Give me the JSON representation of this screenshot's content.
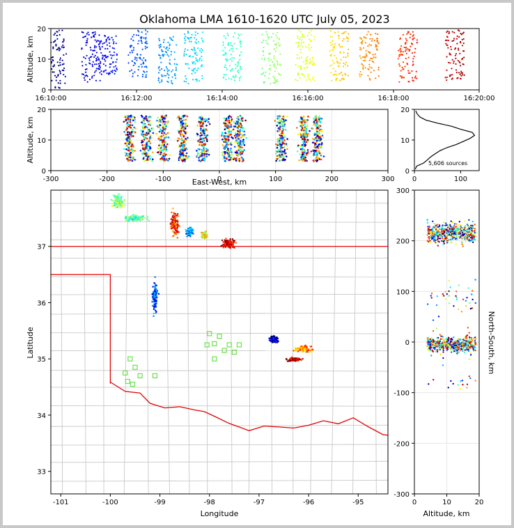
{
  "chart_data": [
    {
      "type": "scatter",
      "id": "time_height",
      "title": "Oklahoma LMA 1610-1620 UTC July 05, 2023",
      "xlabel": "",
      "ylabel": "Altitude, km",
      "xticks": [
        "16:10:00",
        "16:12:00",
        "16:14:00",
        "16:16:00",
        "16:18:00",
        "16:20:00"
      ],
      "xlim_minutes": [
        0,
        10
      ],
      "ylim": [
        0,
        20
      ],
      "yticks": [
        0,
        10,
        20
      ],
      "color_by": "time (blue → red)",
      "series": [
        {
          "x_minutes": 0.0,
          "ymin": 0.5,
          "ymax": 19.5
        },
        {
          "x_minutes": 0.8,
          "ymin": 2.5,
          "ymax": 19.0
        },
        {
          "x_minutes": 1.2,
          "ymin": 5.0,
          "ymax": 18.0
        },
        {
          "x_minutes": 1.9,
          "ymin": 4.0,
          "ymax": 19.5
        },
        {
          "x_minutes": 2.6,
          "ymin": 2.0,
          "ymax": 18.0
        },
        {
          "x_minutes": 3.2,
          "ymin": 2.0,
          "ymax": 19.5
        },
        {
          "x_minutes": 4.1,
          "ymin": 3.0,
          "ymax": 19.0
        },
        {
          "x_minutes": 5.0,
          "ymin": 2.0,
          "ymax": 19.0
        },
        {
          "x_minutes": 5.8,
          "ymin": 3.0,
          "ymax": 19.5
        },
        {
          "x_minutes": 6.6,
          "ymin": 3.0,
          "ymax": 19.5
        },
        {
          "x_minutes": 7.3,
          "ymin": 3.0,
          "ymax": 19.0
        },
        {
          "x_minutes": 8.2,
          "ymin": 2.5,
          "ymax": 19.0
        },
        {
          "x_minutes": 9.3,
          "ymin": 3.0,
          "ymax": 19.5
        }
      ]
    },
    {
      "type": "scatter",
      "id": "ew_height",
      "xlabel": "East-West, km",
      "ylabel": "Altitude, km",
      "xlim": [
        -300,
        300
      ],
      "xticks": [
        -300,
        -200,
        -100,
        0,
        100,
        200,
        300
      ],
      "ylim": [
        0,
        20
      ],
      "yticks": [
        0,
        10,
        20
      ],
      "clusters_km": [
        -160,
        -130,
        -100,
        -65,
        -30,
        15,
        35,
        110,
        150,
        175
      ]
    },
    {
      "type": "line",
      "id": "histogram",
      "xticks": [
        0,
        100
      ],
      "xlim": [
        0,
        140
      ],
      "ylim": [
        0,
        20
      ],
      "yticks": [
        0,
        10,
        20
      ],
      "annotation": "5,606 sources",
      "profile": [
        {
          "alt": 0.5,
          "count": 2
        },
        {
          "alt": 1.5,
          "count": 5
        },
        {
          "alt": 2.5,
          "count": 20
        },
        {
          "alt": 3.5,
          "count": 28
        },
        {
          "alt": 4.5,
          "count": 35
        },
        {
          "alt": 5.5,
          "count": 45
        },
        {
          "alt": 6.5,
          "count": 55
        },
        {
          "alt": 7.5,
          "count": 70
        },
        {
          "alt": 8.5,
          "count": 90
        },
        {
          "alt": 9.5,
          "count": 105
        },
        {
          "alt": 10.5,
          "count": 120
        },
        {
          "alt": 11.5,
          "count": 130
        },
        {
          "alt": 12.5,
          "count": 125
        },
        {
          "alt": 13.5,
          "count": 100
        },
        {
          "alt": 14.5,
          "count": 80
        },
        {
          "alt": 15.5,
          "count": 50
        },
        {
          "alt": 16.5,
          "count": 25
        },
        {
          "alt": 17.5,
          "count": 12
        },
        {
          "alt": 18.5,
          "count": 6
        },
        {
          "alt": 19.5,
          "count": 3
        }
      ]
    },
    {
      "type": "scatter",
      "id": "plan_view",
      "xlabel": "Longitude",
      "ylabel": "Latitude",
      "xlim": [
        -101.2,
        -94.4
      ],
      "ylim": [
        32.6,
        38.0
      ],
      "xticks": [
        -101,
        -100,
        -99,
        -98,
        -97,
        -96,
        -95
      ],
      "yticks": [
        33,
        34,
        35,
        36,
        37
      ],
      "stations": [
        [
          -99.6,
          35.0
        ],
        [
          -99.5,
          34.85
        ],
        [
          -99.7,
          34.75
        ],
        [
          -99.4,
          34.7
        ],
        [
          -99.1,
          34.7
        ],
        [
          -99.65,
          34.6
        ],
        [
          -99.55,
          34.55
        ],
        [
          -98.0,
          35.45
        ],
        [
          -97.8,
          35.4
        ],
        [
          -98.05,
          35.25
        ],
        [
          -97.9,
          35.27
        ],
        [
          -97.6,
          35.25
        ],
        [
          -97.4,
          35.25
        ],
        [
          -97.7,
          35.15
        ],
        [
          -97.9,
          35.0
        ],
        [
          -97.5,
          35.12
        ]
      ]
    },
    {
      "type": "scatter",
      "id": "ns_height",
      "xlabel": "Altitude, km",
      "ylabel": "North-South, km",
      "xlim": [
        0,
        20
      ],
      "xticks": [
        0,
        10,
        20
      ],
      "ylim": [
        -300,
        300
      ],
      "yticks": [
        -300,
        -200,
        -100,
        0,
        100,
        200,
        300
      ]
    }
  ]
}
